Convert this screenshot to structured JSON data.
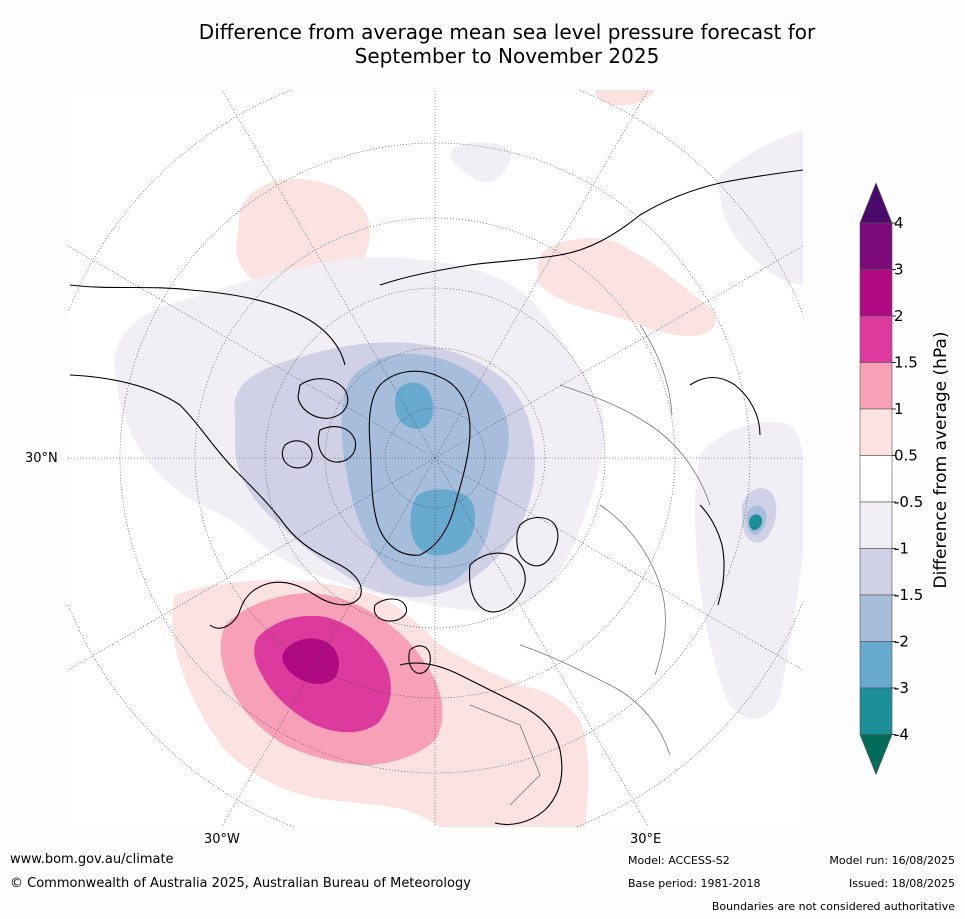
{
  "title": {
    "line1": "Difference from average mean sea level pressure forecast for",
    "line2": "September to November 2025"
  },
  "map_labels": {
    "lat_30n": "30°N",
    "lon_30w": "30°W",
    "lon_30e": "30°E"
  },
  "colorbar": {
    "label": "Difference from average (hPa)",
    "ticks": [
      "4",
      "3",
      "2",
      "1.5",
      "1",
      "0.5",
      "-0.5",
      "-1",
      "-1.5",
      "-2",
      "-3",
      "-4"
    ],
    "colors": {
      "gt4": "#4a0a6b",
      "3to4": "#7c0a7a",
      "2to3": "#b00a83",
      "1.5to2": "#dc3a9c",
      "1to1.5": "#f7a0b8",
      "0.5to1": "#fde2e2",
      "neutral": "#ffffff",
      "-1to-0.5": "#f1eef5",
      "-1.5to-1": "#d0d1e6",
      "-2to-1.5": "#a6bddb",
      "-3to-2": "#67a9cf",
      "-4to-3": "#1c9099",
      "lt-4": "#016c59"
    }
  },
  "footer": {
    "website": "www.bom.gov.au/climate",
    "copyright": "© Commonwealth of Australia 2025, Australian Bureau of Meteorology",
    "model": "Model: ACCESS-S2",
    "base_period": "Base period: 1981-2018",
    "model_run": "Model run: 16/08/2025",
    "issued": "Issued: 18/08/2025",
    "boundaries": "Boundaries are not considered authoritative"
  }
}
